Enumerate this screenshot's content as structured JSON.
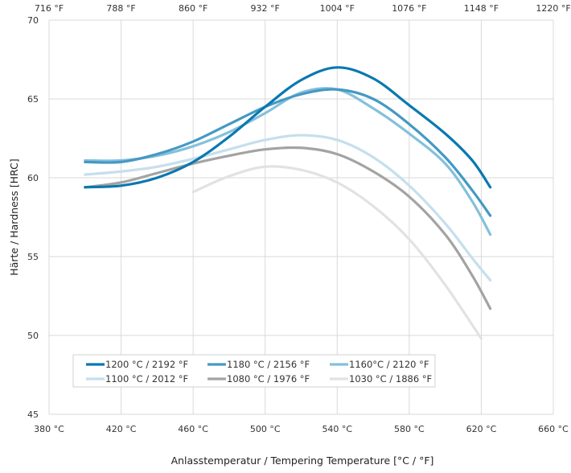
{
  "chart_data": {
    "type": "line",
    "xlabel": "Anlasstemperatur / Tempering Temperature [°C / °F]",
    "ylabel": "Härte / Hardness [HRC]",
    "xlim": [
      380,
      660
    ],
    "ylim": [
      45,
      70
    ],
    "x_ticks": [
      "380 °C",
      "420 °C",
      "460 °C",
      "500 °C",
      "540 °C",
      "580 °C",
      "620 °C",
      "660 °C"
    ],
    "x_top_ticks": [
      "716 °F",
      "788 °F",
      "860 °F",
      "932 °F",
      "1004 °F",
      "1076 °F",
      "1148 °F",
      "1220 °F"
    ],
    "y_ticks": [
      "45",
      "50",
      "55",
      "60",
      "65",
      "70"
    ],
    "grid": true,
    "legend_position": "bottom-left",
    "series": [
      {
        "name": "1200 °C / 2192 °F",
        "color": "#0a78b0",
        "x": [
          400,
          420,
          440,
          460,
          480,
          500,
          520,
          540,
          560,
          580,
          600,
          615,
          625
        ],
        "y": [
          59.4,
          59.5,
          60.0,
          61.0,
          62.6,
          64.5,
          66.2,
          67.0,
          66.3,
          64.6,
          62.8,
          61.1,
          59.4
        ]
      },
      {
        "name": "1180 °C / 2156 °F",
        "color": "#4599c4",
        "x": [
          400,
          420,
          440,
          460,
          480,
          500,
          520,
          540,
          560,
          580,
          600,
          615,
          625
        ],
        "y": [
          61.0,
          61.0,
          61.5,
          62.3,
          63.4,
          64.5,
          65.3,
          65.6,
          65.0,
          63.4,
          61.3,
          59.2,
          57.6
        ]
      },
      {
        "name": "1160°C / 2120 °F",
        "color": "#84c0db",
        "x": [
          400,
          420,
          440,
          460,
          480,
          500,
          520,
          540,
          560,
          580,
          600,
          615,
          625
        ],
        "y": [
          61.1,
          61.1,
          61.4,
          62.0,
          62.9,
          64.1,
          65.4,
          65.6,
          64.4,
          62.8,
          60.9,
          58.5,
          56.4
        ]
      },
      {
        "name": "1100 °C / 2012 °F",
        "color": "#c5dfed",
        "x": [
          400,
          420,
          440,
          460,
          480,
          500,
          520,
          540,
          560,
          580,
          600,
          615,
          625
        ],
        "y": [
          60.2,
          60.4,
          60.7,
          61.2,
          61.8,
          62.4,
          62.7,
          62.4,
          61.3,
          59.5,
          57.1,
          54.9,
          53.5
        ]
      },
      {
        "name": "1080 °C / 1976 °F",
        "color": "#a3a3a3",
        "x": [
          400,
          420,
          440,
          460,
          480,
          500,
          520,
          540,
          560,
          580,
          600,
          615,
          625
        ],
        "y": [
          59.4,
          59.7,
          60.3,
          60.9,
          61.4,
          61.8,
          61.9,
          61.5,
          60.4,
          58.8,
          56.4,
          53.8,
          51.7
        ]
      },
      {
        "name": "1030 °C / 1886 °F",
        "color": "#e2e2e2",
        "x": [
          460,
          480,
          500,
          520,
          540,
          560,
          580,
          600,
          620
        ],
        "y": [
          59.1,
          60.1,
          60.7,
          60.5,
          59.7,
          58.2,
          56.1,
          53.2,
          49.8
        ]
      }
    ]
  }
}
